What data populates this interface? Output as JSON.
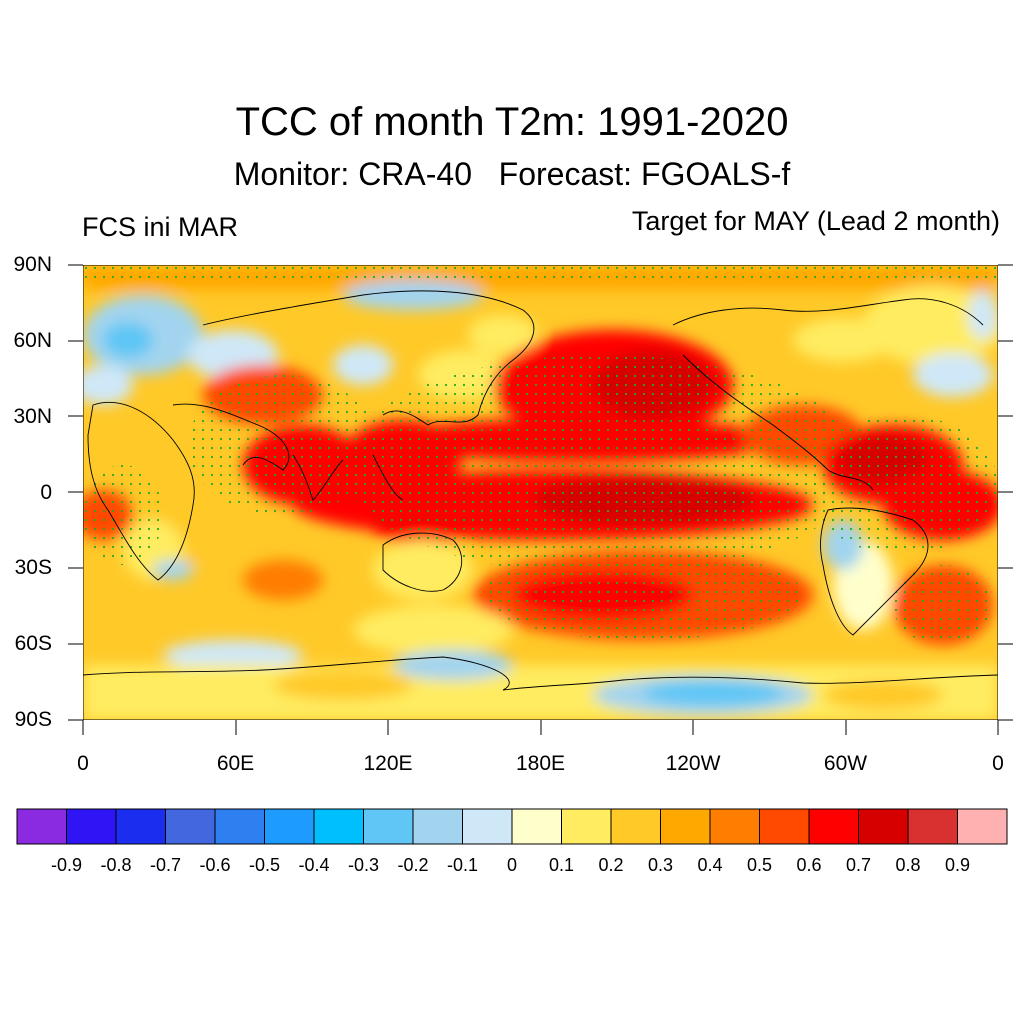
{
  "title": "TCC of month T2m: 1991-2020",
  "subtitle": {
    "monitor": "Monitor: CRA-40",
    "forecast": "Forecast: FGOALS-f"
  },
  "init_label": "FCS ini MAR",
  "target_label": "Target for MAY (Lead 2 month)",
  "y_ticks": [
    "90N",
    "60N",
    "30N",
    "0",
    "30S",
    "60S",
    "90S"
  ],
  "x_ticks": [
    "0",
    "60E",
    "120E",
    "180E",
    "120W",
    "60W",
    "0"
  ],
  "colorbar": {
    "colors": [
      "#8a2be2",
      "#2f14f5",
      "#1b2ef0",
      "#4367de",
      "#2e7fef",
      "#1e9bff",
      "#00bfff",
      "#5fc6f5",
      "#a2d4ef",
      "#cfe8f8",
      "#ffffcc",
      "#ffec60",
      "#ffc928",
      "#ffa800",
      "#ff7d00",
      "#ff4a00",
      "#ff0000",
      "#d70000",
      "#d93030",
      "#ffb0b0"
    ],
    "labels": [
      "-0.9",
      "-0.8",
      "-0.7",
      "-0.6",
      "-0.5",
      "-0.4",
      "-0.3",
      "-0.2",
      "-0.1",
      "0",
      "0.1",
      "0.2",
      "0.3",
      "0.4",
      "0.5",
      "0.6",
      "0.7",
      "0.8",
      "0.9"
    ]
  },
  "colors": {
    "stipple": "#22aa22",
    "coast": "#000000"
  }
}
